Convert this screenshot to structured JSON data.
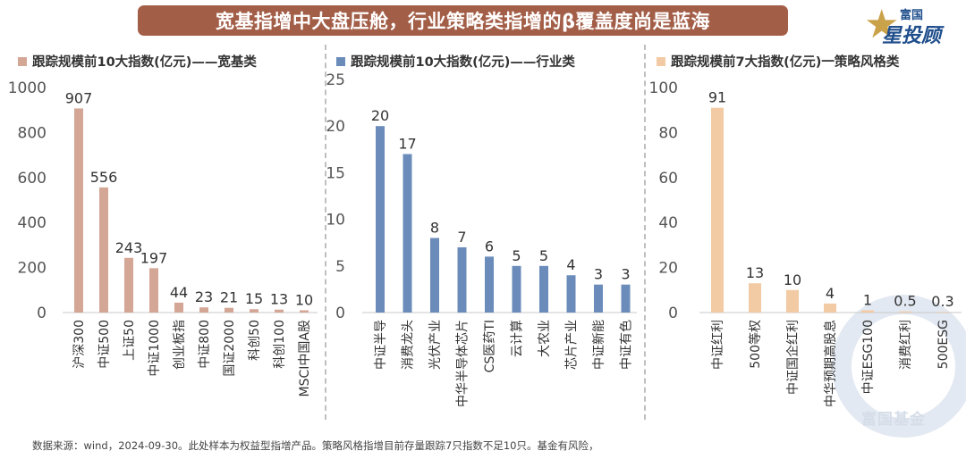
{
  "banner_title": "宽基指增中大盘压舱，行业策略类指增的β覆盖度尚是蓝海",
  "logo": {
    "line1": "富国",
    "line2": "星投顾"
  },
  "watermark": "富国基金",
  "footer": "数据来源：wind，2024-09-30。此处样本为权益型指增产品。策略风格指增目前存量跟踪7只指数不足10只。基金有风险，",
  "chart_data": [
    {
      "type": "bar",
      "title": "跟踪规模前10大指数(亿元)——宽基类",
      "color": "#d4a696",
      "categories": [
        "沪深300",
        "中证500",
        "上证50",
        "中证1000",
        "创业板指",
        "中证800",
        "国证2000",
        "科创50",
        "科创100",
        "MSCI中国A股"
      ],
      "values": [
        907,
        556,
        243,
        197,
        44,
        23,
        21,
        15,
        13,
        10
      ],
      "value_labels": [
        "907",
        "556",
        "243",
        "197",
        "44",
        "23",
        "21",
        "15",
        "13",
        "10"
      ],
      "yticks": [
        "0",
        "200",
        "400",
        "600",
        "800",
        "1000"
      ],
      "ylim": [
        0,
        1000
      ]
    },
    {
      "type": "bar",
      "title": "跟踪规模前10大指数(亿元)——行业类",
      "color": "#6b8cba",
      "categories": [
        "中证半导",
        "消费龙头",
        "光伏产业",
        "中华半导体芯片",
        "CS医药TI",
        "云计算",
        "大农业",
        "芯片产业",
        "中证新能",
        "中证有色"
      ],
      "values": [
        20,
        17,
        8,
        7,
        6,
        5,
        5,
        4,
        3,
        3
      ],
      "value_labels": [
        "20",
        "17",
        "8",
        "7",
        "6",
        "5",
        "5",
        "4",
        "3",
        "3"
      ],
      "yticks": [
        "0",
        "5",
        "10",
        "15",
        "20",
        "25"
      ],
      "ylim": [
        0,
        25
      ]
    },
    {
      "type": "bar",
      "title": "跟踪规模前7大指数(亿元)一策略风格类",
      "color": "#f2caa4",
      "categories": [
        "中证红利",
        "500等权",
        "中证国企红利",
        "中华预期高股息",
        "中证ESG100",
        "消费红利",
        "500ESG"
      ],
      "values": [
        91,
        13,
        10,
        4,
        1,
        0.5,
        0.3
      ],
      "value_labels": [
        "91",
        "13",
        "10",
        "4",
        "1",
        "0.5",
        "0.3"
      ],
      "yticks": [
        "0",
        "20",
        "40",
        "60",
        "80",
        "100"
      ],
      "ylim": [
        0,
        100
      ]
    }
  ]
}
